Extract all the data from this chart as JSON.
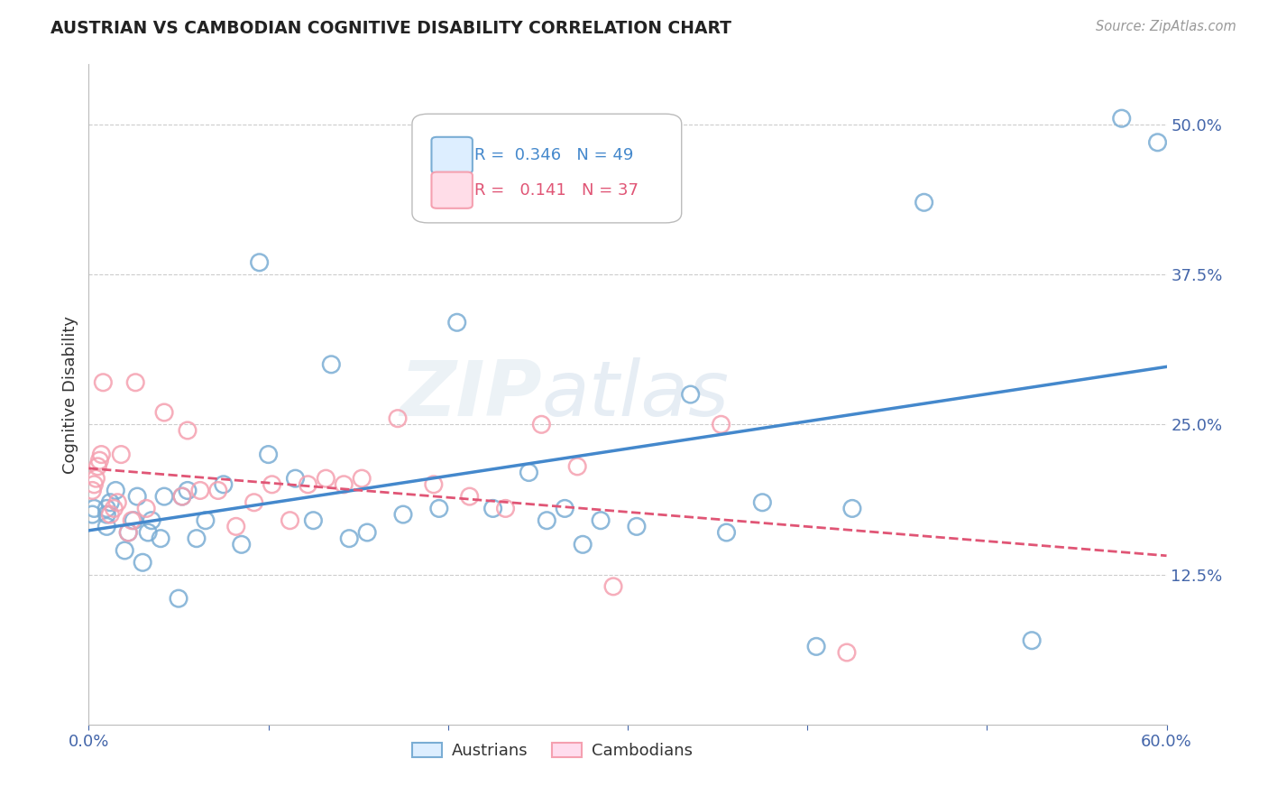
{
  "title": "AUSTRIAN VS CAMBODIAN COGNITIVE DISABILITY CORRELATION CHART",
  "source": "Source: ZipAtlas.com",
  "ylabel": "Cognitive Disability",
  "watermark": "ZIPatlas",
  "xlim": [
    0.0,
    0.6
  ],
  "ylim": [
    0.0,
    0.55
  ],
  "xticks": [
    0.0,
    0.1,
    0.2,
    0.3,
    0.4,
    0.5,
    0.6
  ],
  "xticklabels": [
    "0.0%",
    "",
    "",
    "",
    "",
    "",
    "60.0%"
  ],
  "yticks": [
    0.0,
    0.125,
    0.25,
    0.375,
    0.5
  ],
  "yticklabels_right": [
    "",
    "12.5%",
    "25.0%",
    "37.5%",
    "50.0%"
  ],
  "grid_color": "#cccccc",
  "background_color": "#ffffff",
  "austrian_color": "#7aadd4",
  "cambodian_color": "#f5a0b0",
  "austrian_R": 0.346,
  "austrian_N": 49,
  "cambodian_R": 0.141,
  "cambodian_N": 37,
  "austrian_line_color": "#4488cc",
  "cambodian_line_color": "#e05575",
  "tick_color": "#4466aa",
  "austrians_x": [
    0.002,
    0.003,
    0.01,
    0.01,
    0.01,
    0.012,
    0.015,
    0.02,
    0.022,
    0.025,
    0.027,
    0.03,
    0.033,
    0.035,
    0.04,
    0.042,
    0.05,
    0.052,
    0.055,
    0.06,
    0.065,
    0.075,
    0.085,
    0.095,
    0.1,
    0.115,
    0.125,
    0.135,
    0.145,
    0.155,
    0.175,
    0.195,
    0.205,
    0.225,
    0.245,
    0.255,
    0.265,
    0.275,
    0.285,
    0.305,
    0.335,
    0.355,
    0.375,
    0.405,
    0.425,
    0.465,
    0.525,
    0.575,
    0.595
  ],
  "austrians_y": [
    0.175,
    0.18,
    0.165,
    0.175,
    0.18,
    0.185,
    0.195,
    0.145,
    0.16,
    0.17,
    0.19,
    0.135,
    0.16,
    0.17,
    0.155,
    0.19,
    0.105,
    0.19,
    0.195,
    0.155,
    0.17,
    0.2,
    0.15,
    0.385,
    0.225,
    0.205,
    0.17,
    0.3,
    0.155,
    0.16,
    0.175,
    0.18,
    0.335,
    0.18,
    0.21,
    0.17,
    0.18,
    0.15,
    0.17,
    0.165,
    0.275,
    0.16,
    0.185,
    0.065,
    0.18,
    0.435,
    0.07,
    0.505,
    0.485
  ],
  "cambodians_x": [
    0.002,
    0.003,
    0.004,
    0.005,
    0.006,
    0.007,
    0.008,
    0.012,
    0.014,
    0.016,
    0.018,
    0.022,
    0.024,
    0.026,
    0.032,
    0.042,
    0.052,
    0.055,
    0.062,
    0.072,
    0.082,
    0.092,
    0.102,
    0.112,
    0.122,
    0.132,
    0.142,
    0.152,
    0.172,
    0.192,
    0.212,
    0.232,
    0.252,
    0.272,
    0.292,
    0.352,
    0.422
  ],
  "cambodians_y": [
    0.195,
    0.2,
    0.205,
    0.215,
    0.22,
    0.225,
    0.285,
    0.175,
    0.18,
    0.185,
    0.225,
    0.16,
    0.17,
    0.285,
    0.18,
    0.26,
    0.19,
    0.245,
    0.195,
    0.195,
    0.165,
    0.185,
    0.2,
    0.17,
    0.2,
    0.205,
    0.2,
    0.205,
    0.255,
    0.2,
    0.19,
    0.18,
    0.25,
    0.215,
    0.115,
    0.25,
    0.06
  ]
}
